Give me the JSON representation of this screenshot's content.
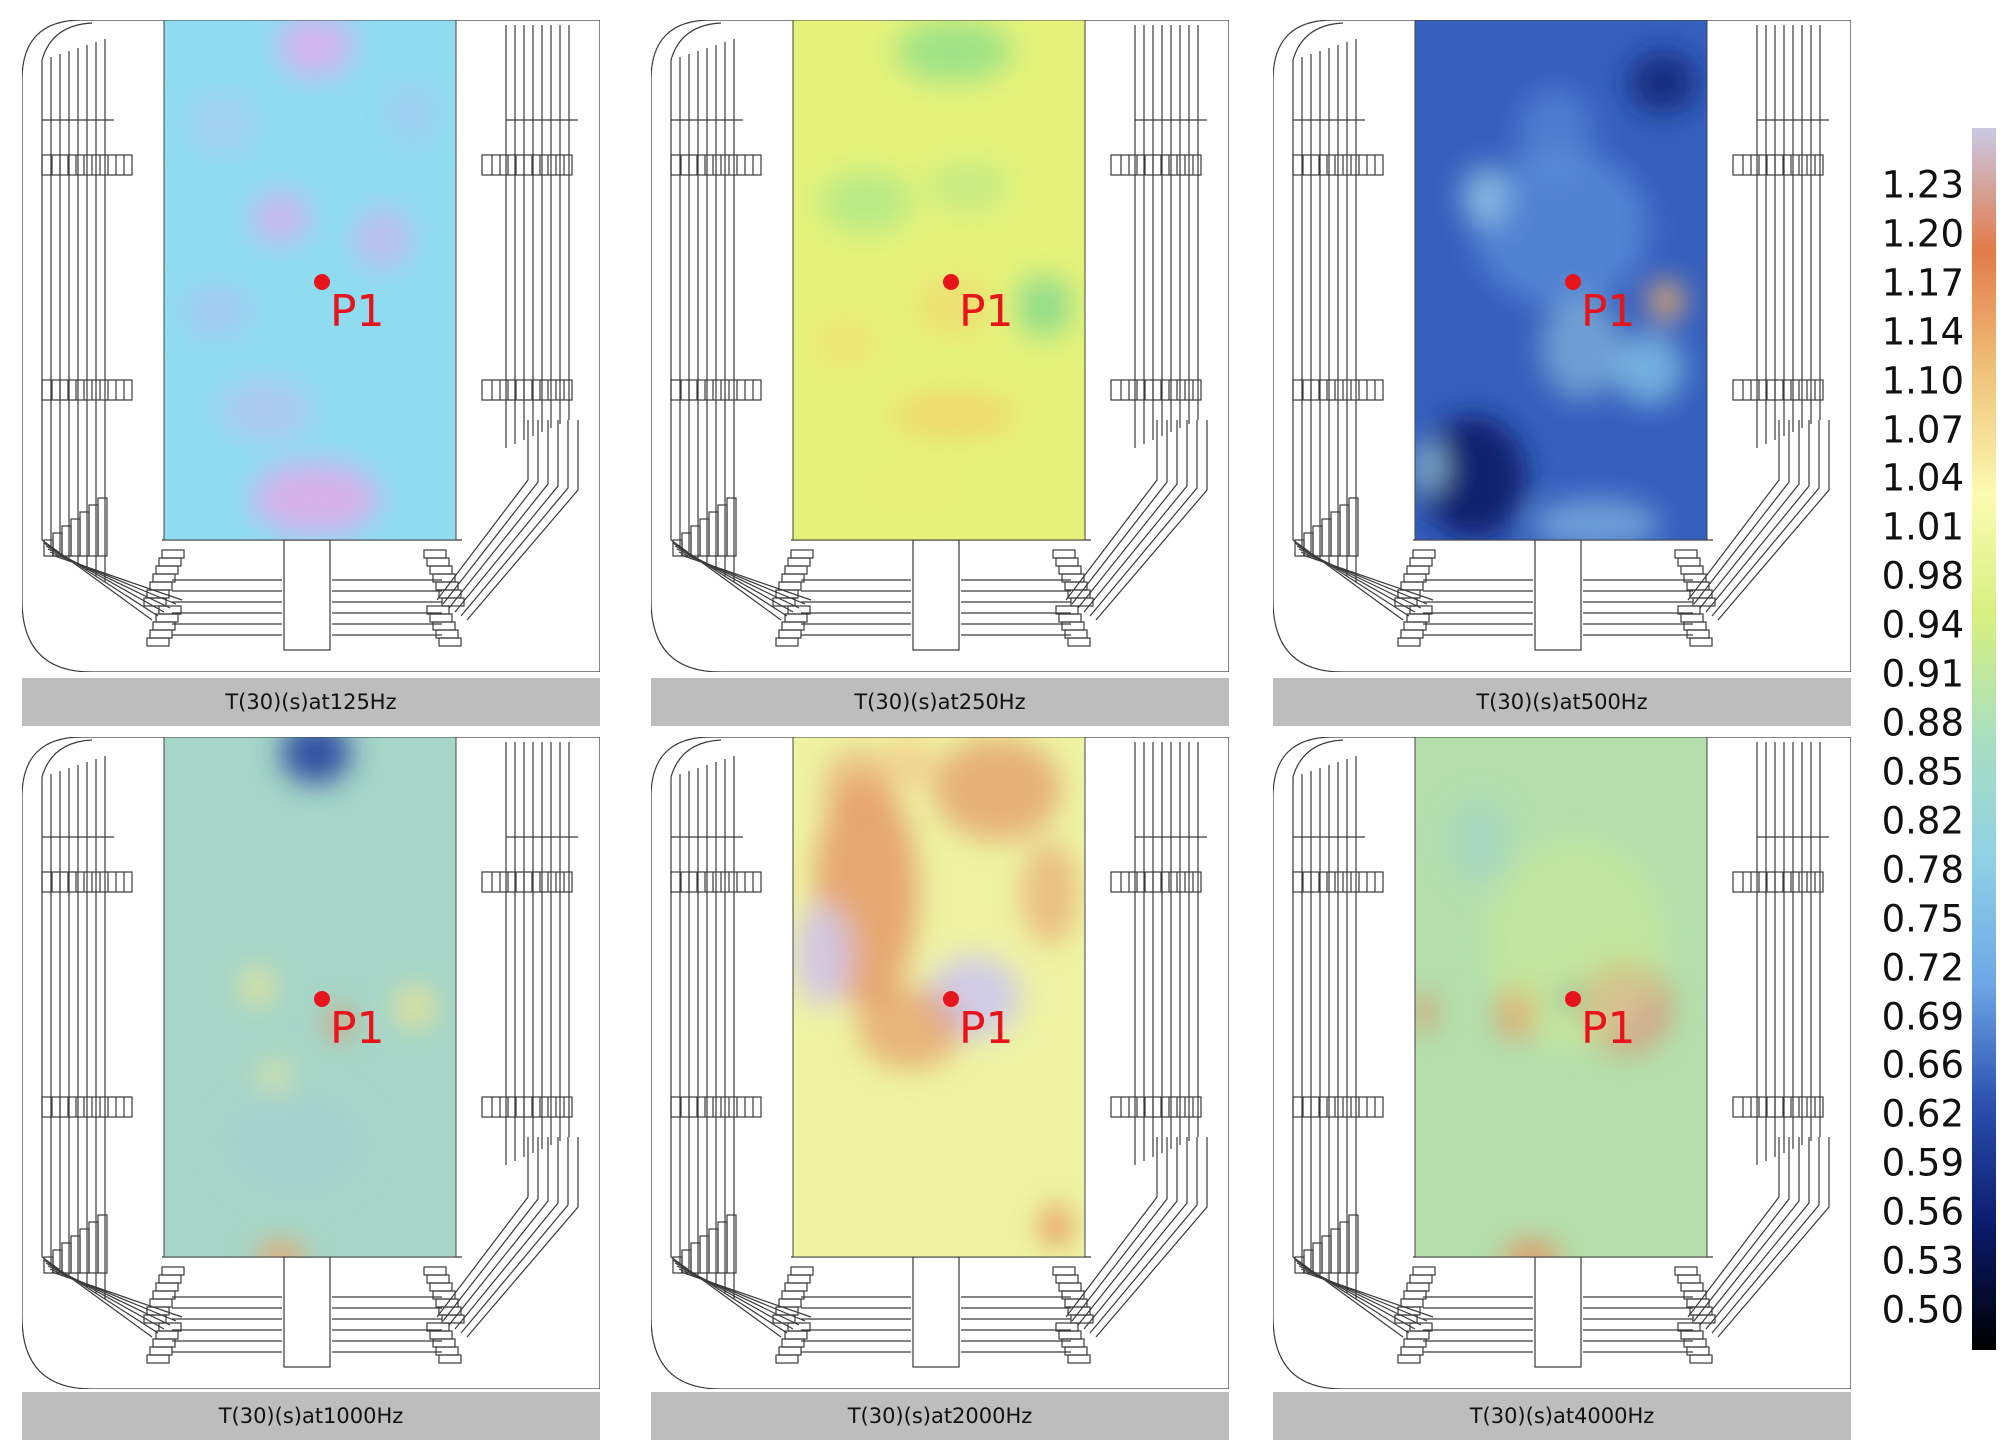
{
  "chart_data": {
    "type": "heatmap",
    "panels": [
      {
        "caption": "T(30)(s)at125Hz",
        "point_label": "P1"
      },
      {
        "caption": "T(30)(s)at250Hz",
        "point_label": "P1"
      },
      {
        "caption": "T(30)(s)at500Hz",
        "point_label": "P1"
      },
      {
        "caption": "T(30)(s)at1000Hz",
        "point_label": "P1"
      },
      {
        "caption": "T(30)(s)at2000Hz",
        "point_label": "P1"
      },
      {
        "caption": "T(30)(s)at4000Hz",
        "point_label": "P1"
      }
    ],
    "colorbar": {
      "ticks": [
        "1.23",
        "1.20",
        "1.17",
        "1.14",
        "1.10",
        "1.07",
        "1.04",
        "1.01",
        "0.98",
        "0.94",
        "0.91",
        "0.88",
        "0.85",
        "0.82",
        "0.78",
        "0.75",
        "0.72",
        "0.69",
        "0.66",
        "0.62",
        "0.59",
        "0.56",
        "0.53",
        "0.50"
      ],
      "range": [
        0.5,
        1.23
      ],
      "colors": [
        "#000000",
        "#0b1a6b",
        "#2a4fb0",
        "#6ea6e6",
        "#8fd0e6",
        "#a8dfc0",
        "#d6f07f",
        "#fbfbb0",
        "#f0c27a",
        "#e37a48",
        "#c9c9e6"
      ]
    },
    "point_color": "#e8141c"
  }
}
